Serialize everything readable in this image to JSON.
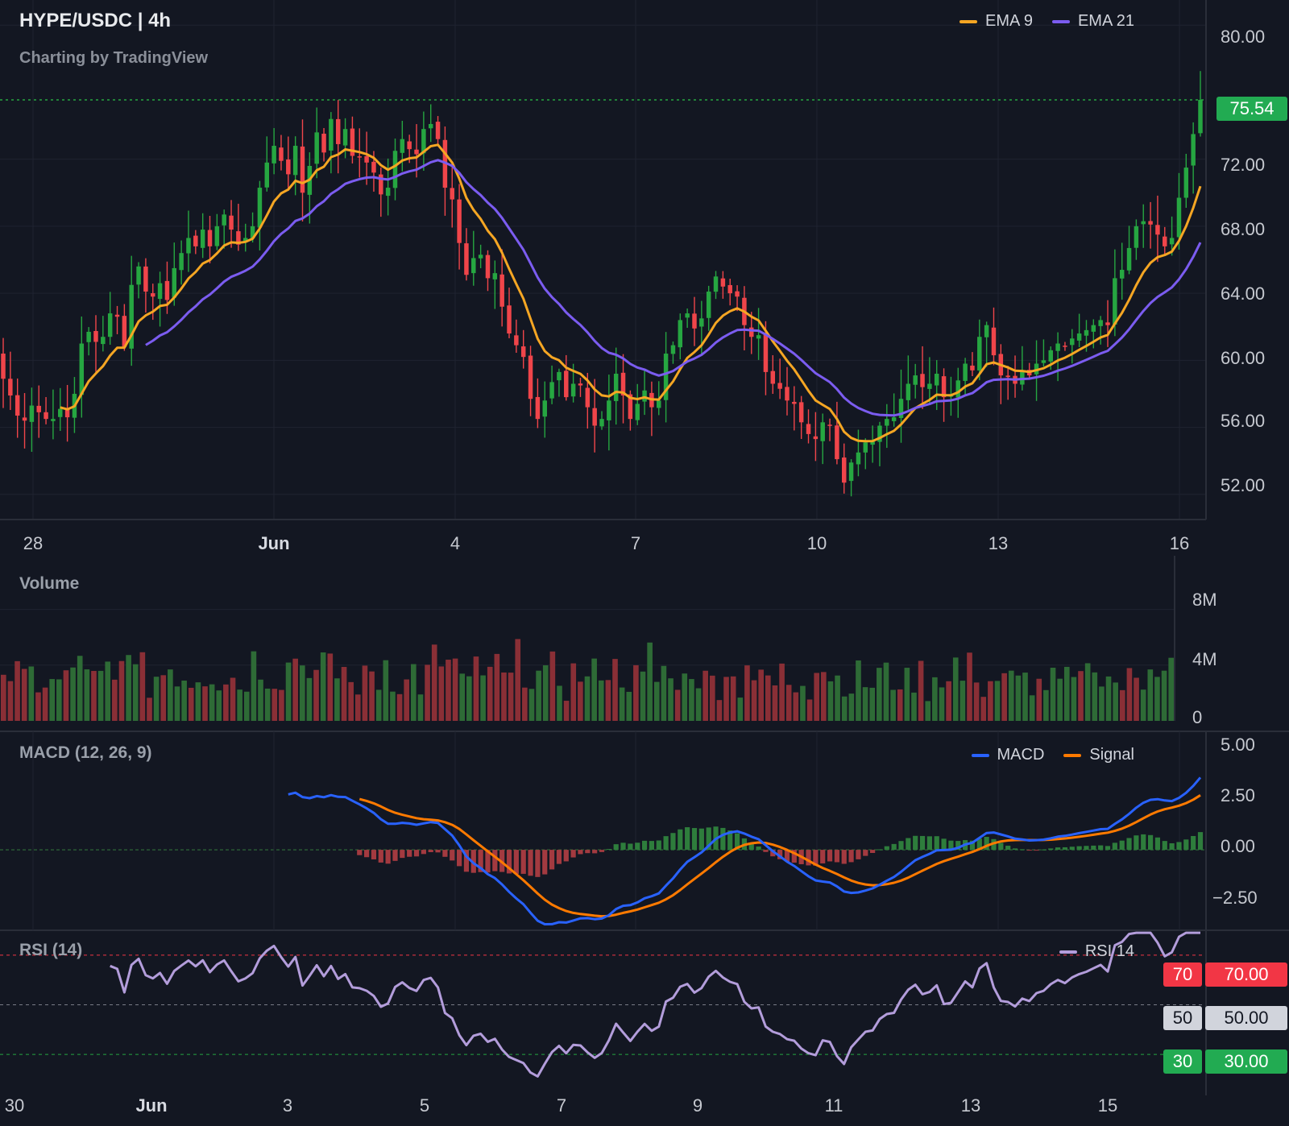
{
  "header": {
    "title": "HYPE/USDC | 4h",
    "subtitle": "Charting by TradingView"
  },
  "price_pane": {
    "legend": [
      {
        "label": "EMA 9",
        "color": "#f5a623"
      },
      {
        "label": "EMA 21",
        "color": "#7b5cf0"
      }
    ],
    "y_ticks": [
      "80.00",
      "72.00",
      "68.00",
      "64.00",
      "60.00",
      "56.00",
      "52.00"
    ],
    "last_price": "75.54",
    "x_ticks": [
      "28",
      "Jun",
      "4",
      "7",
      "10",
      "13",
      "16"
    ]
  },
  "volume_pane": {
    "label": "Volume",
    "y_ticks": [
      "8M",
      "4M",
      "0"
    ]
  },
  "macd_pane": {
    "label": "MACD (12, 26, 9)",
    "legend": [
      {
        "label": "MACD",
        "color": "#2962ff"
      },
      {
        "label": "Signal",
        "color": "#ff7a00"
      }
    ],
    "y_ticks": [
      "5.00",
      "2.50",
      "0.00",
      "−2.50"
    ]
  },
  "rsi_pane": {
    "label": "RSI (14)",
    "legend": [
      {
        "label": "RSI 14",
        "color": "#b39ddb"
      }
    ],
    "levels": [
      {
        "short": "70",
        "long": "70.00",
        "color": "#f23645",
        "text": "#ffffff"
      },
      {
        "short": "50",
        "long": "50.00",
        "color": "#d1d4dc",
        "text": "#131722"
      },
      {
        "short": "30",
        "long": "30.00",
        "color": "#22ab94",
        "text": "#ffffff"
      }
    ],
    "x_ticks": [
      "30",
      "Jun",
      "3",
      "5",
      "7",
      "9",
      "11",
      "13",
      "15"
    ]
  },
  "colors": {
    "up": "#26a641",
    "down": "#f0454a",
    "ema9": "#f5a623",
    "ema21": "#7b5cf0",
    "macd": "#2962ff",
    "signal": "#ff7a00",
    "rsi": "#b39ddb",
    "grid": "#1f2330"
  },
  "chart_data": [
    {
      "type": "candlestick",
      "title": "HYPE/USDC | 4h",
      "x_ticks": [
        "28",
        "Jun",
        "4",
        "7",
        "10",
        "13",
        "16"
      ],
      "ylim": [
        50.5,
        81.5
      ],
      "close": [
        58.9,
        57.9,
        56.7,
        56.4,
        57.3,
        56.9,
        56.5,
        56.5,
        57.1,
        56.6,
        58.0,
        61.0,
        61.7,
        61.1,
        61.4,
        62.8,
        62.6,
        60.8,
        64.5,
        65.6,
        64.1,
        63.8,
        64.6,
        63.6,
        65.5,
        66.4,
        67.3,
        66.8,
        67.8,
        66.8,
        68.0,
        68.7,
        67.8,
        66.9,
        67.3,
        68.0,
        70.3,
        71.8,
        72.8,
        71.9,
        71.1,
        72.8,
        70.0,
        71.6,
        73.6,
        72.4,
        74.4,
        72.9,
        73.8,
        72.2,
        72.1,
        71.8,
        71.2,
        69.9,
        70.3,
        72.5,
        73.2,
        72.6,
        72.3,
        73.8,
        74.1,
        73.2,
        70.3,
        69.6,
        67.0,
        65.1,
        66.1,
        66.3,
        64.9,
        65.2,
        63.2,
        61.6,
        60.9,
        60.2,
        57.7,
        56.5,
        57.6,
        58.7,
        59.3,
        57.8,
        58.6,
        58.5,
        57.2,
        56.1,
        56.5,
        57.6,
        59.2,
        57.9,
        56.5,
        57.4,
        58.2,
        57.2,
        57.6,
        60.4,
        60.9,
        62.4,
        62.8,
        61.9,
        62.5,
        64.1,
        65.0,
        64.4,
        64.0,
        63.8,
        62.1,
        61.4,
        61.5,
        59.3,
        58.6,
        58.3,
        57.6,
        57.4,
        56.3,
        55.6,
        55.3,
        56.3,
        56.1,
        54.1,
        52.7,
        53.9,
        54.5,
        55.1,
        55.2,
        56.1,
        56.5,
        56.6,
        57.7,
        58.6,
        59.1,
        58.4,
        58.6,
        59.2,
        57.8,
        57.9,
        58.8,
        59.8,
        59.4,
        61.4,
        62.1,
        60.3,
        59.1,
        59.0,
        58.6,
        59.3,
        59.1,
        59.8,
        60.0,
        60.6,
        61.0,
        60.8,
        61.3,
        61.6,
        61.8,
        62.1,
        62.4,
        62.1,
        64.9,
        65.4,
        66.7,
        68.0,
        68.3,
        68.1,
        67.5,
        66.8,
        67.3,
        69.7,
        71.5,
        73.5,
        75.54
      ],
      "volume_scale_M": [
        8.0,
        4.0,
        0
      ]
    },
    {
      "type": "line",
      "title": "MACD (12, 26, 9)",
      "ylim": [
        -3.6,
        5.3
      ],
      "y_ticks": [
        5.0,
        2.5,
        0.0,
        -2.5
      ],
      "series": [
        {
          "name": "MACD"
        },
        {
          "name": "Signal"
        }
      ]
    },
    {
      "type": "line",
      "title": "RSI (14)",
      "ylim": [
        20,
        80
      ],
      "levels": [
        70,
        50,
        30
      ],
      "x_ticks": [
        "30",
        "Jun",
        "3",
        "5",
        "7",
        "9",
        "11",
        "13",
        "15"
      ],
      "series": [
        {
          "name": "RSI 14"
        }
      ]
    }
  ]
}
